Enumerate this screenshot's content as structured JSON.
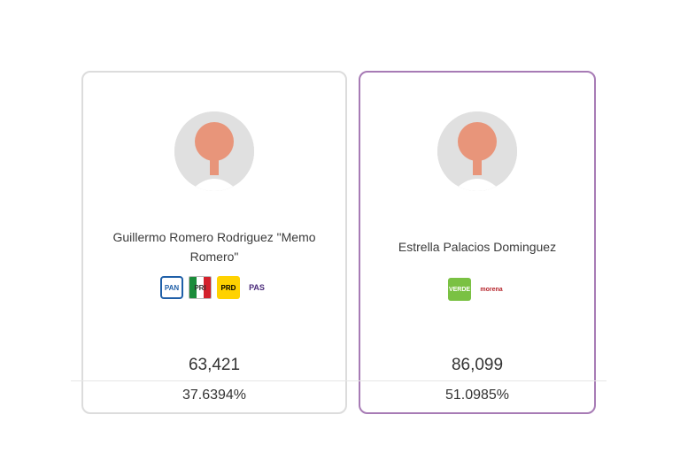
{
  "candidates": [
    {
      "name": "Guillermo Romero Rodriguez \"Memo Romero\"",
      "party_logos": [
        {
          "label": "PAN",
          "icon": "pan-logo-icon"
        },
        {
          "label": "PRI",
          "icon": "pri-logo-icon"
        },
        {
          "label": "PRD",
          "icon": "prd-logo-icon"
        },
        {
          "label": "PAS",
          "icon": "pas-logo-icon"
        }
      ],
      "votes": "63,421",
      "percent": "37.6394%"
    },
    {
      "name": "Estrella Palacios Dominguez",
      "party_logos": [
        {
          "label": "VERDE",
          "icon": "verde-logo-icon"
        },
        {
          "label": "morena",
          "icon": "morena-logo-icon"
        }
      ],
      "votes": "86,099",
      "percent": "51.0985%",
      "highlighted": true
    }
  ],
  "colors": {
    "card_border": "#dcdcdc",
    "highlight_border": "#a77bb5",
    "avatar_bg": "#e0e0e0",
    "avatar_skin": "#e8957a"
  }
}
